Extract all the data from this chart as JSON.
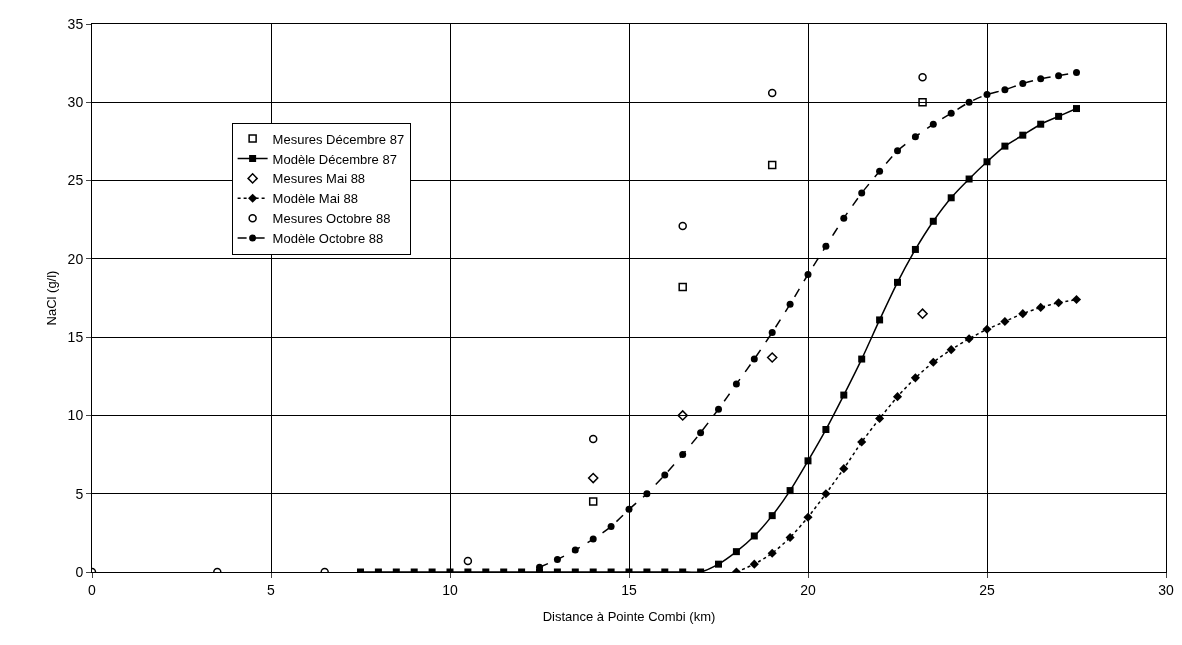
{
  "chart_data": {
    "type": "line",
    "xlabel": "Distance à Pointe Combi (km)",
    "ylabel": "NaCl (g/l)",
    "xlim": [
      0,
      30
    ],
    "ylim": [
      0,
      35
    ],
    "xticks": [
      0,
      5,
      10,
      15,
      20,
      25,
      30
    ],
    "yticks": [
      0,
      5,
      10,
      15,
      20,
      25,
      30,
      35
    ],
    "grid": true,
    "legend": "top left",
    "series": [
      {
        "name": "Mesures Décembre 87",
        "type": "scatter",
        "marker": "square",
        "color": "#000000",
        "x": [
          14,
          16.5,
          19,
          23.2
        ],
        "values": [
          4.5,
          18.2,
          26,
          30
        ]
      },
      {
        "name": "Modèle Décembre 87",
        "marker": "square",
        "line_style": "solid",
        "color": "#000000",
        "x": [
          7.5,
          8,
          8.5,
          9,
          9.5,
          10,
          10.5,
          11,
          11.5,
          12,
          12.5,
          13,
          13.5,
          14,
          14.5,
          15,
          15.5,
          16,
          16.5,
          17,
          17.5,
          18,
          18.5,
          19,
          19.5,
          20,
          20.5,
          21,
          21.5,
          22,
          22.5,
          23,
          23.5,
          24,
          24.5,
          25,
          25.5,
          26,
          26.5,
          27,
          27.5
        ],
        "values": [
          0,
          0,
          0,
          0,
          0,
          0,
          0,
          0,
          0,
          0,
          0,
          0,
          0,
          0,
          0,
          0,
          0,
          0,
          0,
          0,
          0.5,
          1.3,
          2.3,
          3.6,
          5.2,
          7.1,
          9.1,
          11.3,
          13.6,
          16.1,
          18.5,
          20.6,
          22.4,
          23.9,
          25.1,
          26.2,
          27.2,
          27.9,
          28.6,
          29.1,
          29.6
        ]
      },
      {
        "name": "Mesures Mai 88",
        "type": "scatter",
        "marker": "diamond",
        "color": "#000000",
        "x": [
          14,
          16.5,
          19,
          23.2
        ],
        "values": [
          6,
          10,
          13.7,
          16.5
        ]
      },
      {
        "name": "Modèle Mai 88",
        "marker": "diamond",
        "line_style": "dotted",
        "color": "#000000",
        "x": [
          18,
          18.5,
          19,
          19.5,
          20,
          20.5,
          21,
          21.5,
          22,
          22.5,
          23,
          23.5,
          24,
          24.5,
          25,
          25.5,
          26,
          26.5,
          27,
          27.5
        ],
        "values": [
          0,
          0.5,
          1.2,
          2.2,
          3.5,
          5,
          6.6,
          8.3,
          9.8,
          11.2,
          12.4,
          13.4,
          14.2,
          14.9,
          15.5,
          16,
          16.5,
          16.9,
          17.2,
          17.4
        ]
      },
      {
        "name": "Mesures Octobre 88",
        "type": "scatter",
        "marker": "circle",
        "color": "#000000",
        "x": [
          0,
          3.5,
          6.5,
          10.5,
          14,
          16.5,
          19,
          23.2
        ],
        "values": [
          0,
          0,
          0,
          0.7,
          8.5,
          22.1,
          30.6,
          31.6
        ]
      },
      {
        "name": "Modèle Octobre 88",
        "marker": "circle",
        "line_style": "dashed",
        "color": "#000000",
        "x": [
          12.5,
          13,
          13.5,
          14,
          14.5,
          15,
          15.5,
          16,
          16.5,
          17,
          17.5,
          18,
          18.5,
          19,
          19.5,
          20,
          20.5,
          21,
          21.5,
          22,
          22.5,
          23,
          23.5,
          24,
          24.5,
          25,
          25.5,
          26,
          26.5,
          27,
          27.5
        ],
        "values": [
          0.3,
          0.8,
          1.4,
          2.1,
          2.9,
          4,
          5,
          6.2,
          7.5,
          8.9,
          10.4,
          12,
          13.6,
          15.3,
          17.1,
          19,
          20.8,
          22.6,
          24.2,
          25.6,
          26.9,
          27.8,
          28.6,
          29.3,
          30,
          30.5,
          30.8,
          31.2,
          31.5,
          31.7,
          31.9
        ]
      }
    ]
  }
}
